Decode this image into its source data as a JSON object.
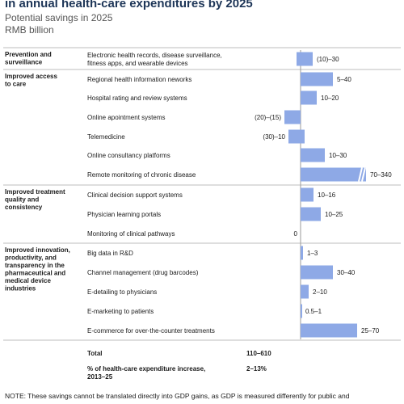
{
  "chart_data": {
    "type": "bar",
    "title": "in annual health-care expenditures by 2025",
    "subtitle": "Potential savings in 2025",
    "unit": "RMB billion",
    "bar_color": "#8ea9e6",
    "bar_outline_color": "#3d6fd6",
    "groups": [
      {
        "label_lines": [
          "Prevention and",
          "surveillance"
        ]
      },
      {
        "label_lines": [
          "Improved access",
          "to care"
        ]
      },
      {
        "label_lines": [
          "Improved treatment",
          "quality and",
          "consistency"
        ]
      },
      {
        "label_lines": [
          "Improved innovation,",
          "productivity, and",
          "transparency in the",
          "pharmaceutical and",
          "medical device",
          "industries"
        ]
      }
    ],
    "rows": [
      {
        "group": 0,
        "label_lines": [
          "Electronic health records, disease surveillance,",
          "fitness apps, and wearable devices"
        ],
        "low": -10,
        "high": 30,
        "value_label": "(10)–30"
      },
      {
        "group": 1,
        "label_lines": [
          "Regional health information neworks"
        ],
        "low": 5,
        "high": 40,
        "value_label": "5–40"
      },
      {
        "group": 1,
        "label_lines": [
          "Hospital rating and review systems"
        ],
        "low": 10,
        "high": 20,
        "value_label": "10–20"
      },
      {
        "group": 1,
        "label_lines": [
          "Online apointment systems"
        ],
        "low": -20,
        "high": -15,
        "value_label": "(20)–(15)"
      },
      {
        "group": 1,
        "label_lines": [
          "Telemedicine"
        ],
        "low": -30,
        "high": 10,
        "value_label": "(30)–10"
      },
      {
        "group": 1,
        "label_lines": [
          "Online consultancy platforms"
        ],
        "low": 10,
        "high": 30,
        "value_label": "10–30"
      },
      {
        "group": 1,
        "label_lines": [
          "Remote monitoring of chronic disease"
        ],
        "low": 70,
        "high": 340,
        "value_label": "70–340",
        "broken": true
      },
      {
        "group": 2,
        "label_lines": [
          "Clinical decision support systems"
        ],
        "low": 10,
        "high": 16,
        "value_label": "10–16"
      },
      {
        "group": 2,
        "label_lines": [
          "Physician learning portals"
        ],
        "low": 10,
        "high": 25,
        "value_label": "10–25"
      },
      {
        "group": 2,
        "label_lines": [
          "Monitoring of clinical pathways"
        ],
        "low": 0,
        "high": 0,
        "value_label": "0"
      },
      {
        "group": 3,
        "label_lines": [
          "Big data in R&D"
        ],
        "low": 1,
        "high": 3,
        "value_label": "1–3"
      },
      {
        "group": 3,
        "label_lines": [
          "Channel management (drug barcodes)"
        ],
        "low": 30,
        "high": 40,
        "value_label": "30–40"
      },
      {
        "group": 3,
        "label_lines": [
          "E-detailing to physicians"
        ],
        "low": 2,
        "high": 10,
        "value_label": "2–10"
      },
      {
        "group": 3,
        "label_lines": [
          "E-marketing to patients"
        ],
        "low": 0.5,
        "high": 1,
        "value_label": "0.5–1"
      },
      {
        "group": 3,
        "label_lines": [
          "E-commerce for over-the-counter treatments"
        ],
        "low": 25,
        "high": 70,
        "value_label": "25–70"
      }
    ],
    "totals": [
      {
        "label_lines": [
          "Total"
        ],
        "value": "110–610"
      },
      {
        "label_lines": [
          "% of health-care expenditure increase,",
          "2013–25"
        ],
        "value": "2–13%"
      }
    ],
    "note": "NOTE: These savings cannot be translated directly into GDP gains, as GDP is measured differently for public and"
  }
}
